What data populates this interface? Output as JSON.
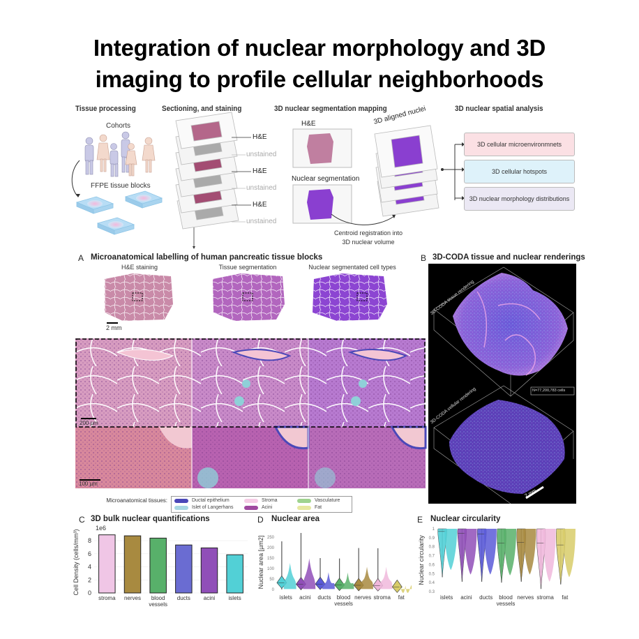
{
  "title": {
    "line1": "Integration of nuclear morphology and 3D",
    "line2": "imaging to profile cellular neighborhoods"
  },
  "schematic": {
    "col1": {
      "header": "Tissue processing",
      "cohorts": "Cohorts",
      "blocks": "FFPE tissue blocks"
    },
    "col2": {
      "header": "Sectioning, and staining",
      "stains": [
        "H&E",
        "unstained",
        "H&E",
        "unstained",
        "H&E",
        "unstained"
      ]
    },
    "col3": {
      "header": "3D nuclear segmentation mapping",
      "he": "H&E",
      "nuclear_seg": "Nuclear segmentation",
      "aligned": "3D aligned nuclei",
      "registration_line1": "Centroid registration into",
      "registration_line2": "3D nuclear volume"
    },
    "col4": {
      "header": "3D nuclear spatial analysis",
      "boxes": [
        "3D cellular microenvironmnets",
        "3D cellular hotspots",
        "3D nuclear morphology distributions"
      ]
    }
  },
  "panel_a": {
    "letter": "A",
    "title": "Microanatomical labelling of human pancreatic tissue blocks",
    "columns": [
      "H&E staining",
      "Tissue segmentation",
      "Nuclear segmentated cell types"
    ],
    "scale_2mm": "2 mm",
    "scale_200um": "200 µm",
    "scale_100um": "100 µm",
    "legend_label": "Microanatomical tissues:",
    "legend": [
      {
        "name": "Ductal epithelium",
        "color": "#4b48b8"
      },
      {
        "name": "Islet of Langerhans",
        "color": "#a9d8e3"
      },
      {
        "name": "Stroma",
        "color": "#f6cde6"
      },
      {
        "name": "Acini",
        "color": "#a04aa0"
      },
      {
        "name": "Vasculature",
        "color": "#9fd38f"
      },
      {
        "name": "Fat",
        "color": "#e6e8a0"
      }
    ]
  },
  "panel_b": {
    "letter": "B",
    "title": "3D-CODA tissue and nuclear renderings",
    "top_label": "3D-CODA tissue rendering",
    "bottom_label": "3D-CODA cellular rendering",
    "count": "N=77,200,783 cells",
    "scale": "2 mm"
  },
  "chart_data": [
    {
      "panel": "C",
      "title": "3D bulk nuclear quantifications",
      "type": "bar",
      "ylabel": "Cell Density (cells/mm³)",
      "multiplier": "1e6",
      "categories": [
        "stroma",
        "nerves",
        "blood vessels",
        "ducts",
        "acini",
        "islets"
      ],
      "values": [
        8.9,
        8.75,
        8.4,
        7.35,
        6.9,
        5.85
      ],
      "colors": [
        "#f0c6e6",
        "#a88a40",
        "#58b06a",
        "#6a6cd2",
        "#904fb8",
        "#52d0d6"
      ],
      "yticks": [
        0,
        2,
        4,
        6,
        8
      ],
      "ylim": [
        0,
        9.4
      ]
    },
    {
      "panel": "D",
      "title": "Nuclear area",
      "type": "violin",
      "ylabel": "Nuclear area [µm2]",
      "categories": [
        "islets",
        "acini",
        "ducts",
        "blood vessels",
        "nerves",
        "stroma",
        "fat"
      ],
      "medians": [
        32,
        25,
        26,
        21,
        20,
        19,
        12
      ],
      "maxima": [
        230,
        270,
        150,
        148,
        198,
        197,
        35
      ],
      "colors": [
        "#52d0d6",
        "#904fb8",
        "#5a5ad8",
        "#58b06a",
        "#a88a40",
        "#f0b8dc",
        "#d8cc6a"
      ],
      "yticks": [
        0,
        50,
        100,
        150,
        200,
        250
      ],
      "ylim": [
        -10,
        270
      ]
    },
    {
      "panel": "E",
      "title": "Nuclear circularity",
      "type": "violin",
      "ylabel": "Nuclear circularity",
      "categories": [
        "islets",
        "acini",
        "ducts",
        "blood vessels",
        "nerves",
        "stroma",
        "fat"
      ],
      "medians": [
        0.97,
        0.95,
        0.94,
        0.84,
        0.85,
        0.84,
        0.82
      ],
      "minima": [
        0.46,
        0.41,
        0.41,
        0.4,
        0.41,
        0.33,
        0.38
      ],
      "colors": [
        "#52d0d6",
        "#904fb8",
        "#5a5ad8",
        "#58b06a",
        "#a88a40",
        "#f0b8dc",
        "#d8cc6a"
      ],
      "yticks": [
        0.3,
        0.4,
        0.5,
        0.6,
        0.7,
        0.8,
        0.9,
        1.0
      ],
      "ylim": [
        0.3,
        1.0
      ]
    }
  ]
}
